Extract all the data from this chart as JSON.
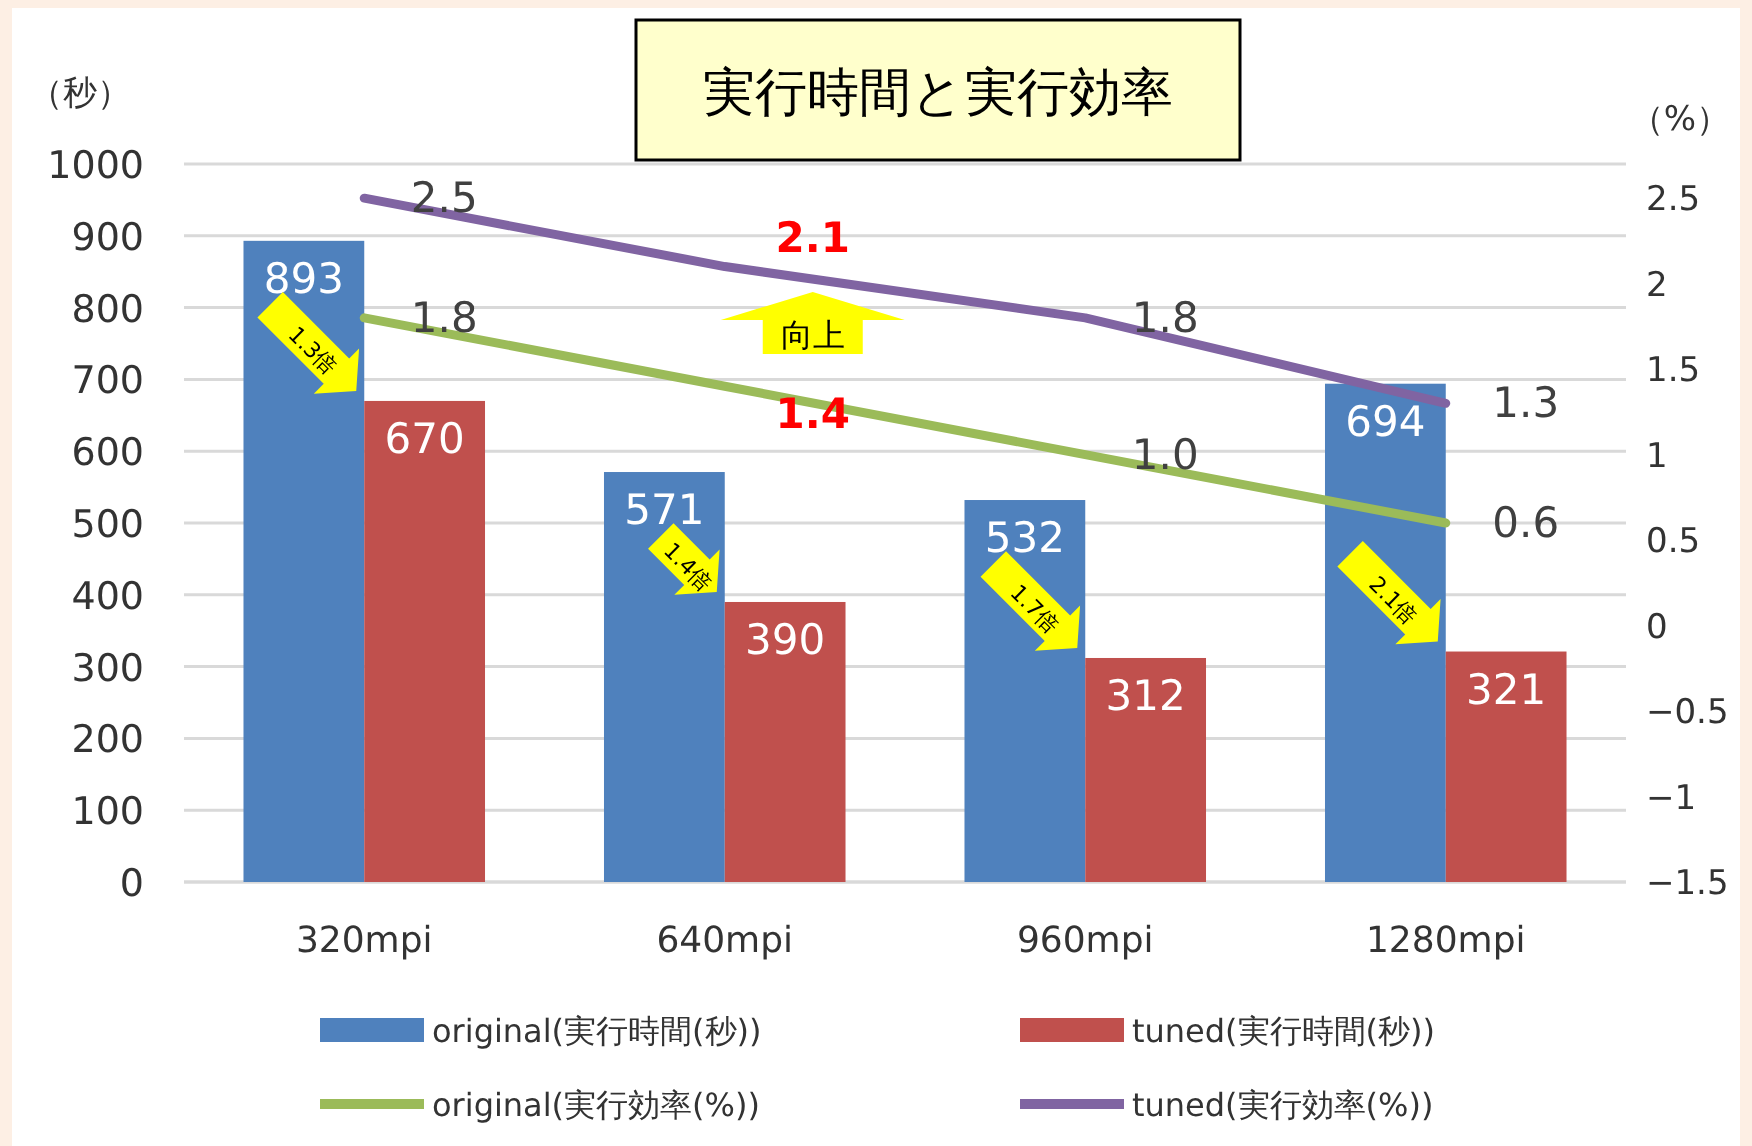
{
  "chart_data": {
    "type": "bar",
    "title": "実行時間と実行効率",
    "ylabel": "（秒）",
    "y2label": "（%）",
    "categories": [
      "320mpi",
      "640mpi",
      "960mpi",
      "1280mpi"
    ],
    "series": [
      {
        "name": "original(実行時間(秒))",
        "color": "#4f81bd",
        "values": [
          893,
          571,
          532,
          694
        ]
      },
      {
        "name": "tuned(実行時間(秒))",
        "color": "#c0504d",
        "values": [
          670,
          390,
          312,
          321
        ]
      },
      {
        "name": "original(実行効率(%))",
        "type": "line",
        "axis": "y2",
        "color": "#9bbb59",
        "values": [
          1.8,
          1.4,
          1.0,
          0.6
        ],
        "value_labels": [
          "1.8",
          null,
          "1.0",
          "0.6"
        ]
      },
      {
        "name": "tuned(実行効率(%))",
        "type": "line",
        "axis": "y2",
        "color": "#8064a2",
        "values": [
          2.5,
          2.1,
          1.8,
          1.3
        ],
        "value_labels": [
          "2.5",
          null,
          "1.8",
          "1.3"
        ]
      }
    ],
    "ylim": [
      0,
      1000
    ],
    "yticks": [
      0,
      100,
      200,
      300,
      400,
      500,
      600,
      700,
      800,
      900,
      1000
    ],
    "y2lim": [
      -1.5,
      2.7
    ],
    "y2ticks": [
      {
        "value": -1.5,
        "label": "−1.5"
      },
      {
        "value": -1,
        "label": "−1"
      },
      {
        "value": -0.5,
        "label": "−0.5"
      },
      0,
      0.5,
      1,
      1.5,
      2,
      2.5
    ],
    "data_labels": true,
    "grid": "y",
    "legend": "bottom",
    "annotations": [
      "2.1",
      "向上",
      "1.4",
      {
        "text": "1.3倍",
        "x": "320mpi"
      },
      {
        "text": "1.4倍",
        "x": "640mpi"
      },
      {
        "text": "1.7倍",
        "x": "960mpi"
      },
      {
        "text": "2.1倍",
        "x": "1280mpi"
      }
    ]
  }
}
